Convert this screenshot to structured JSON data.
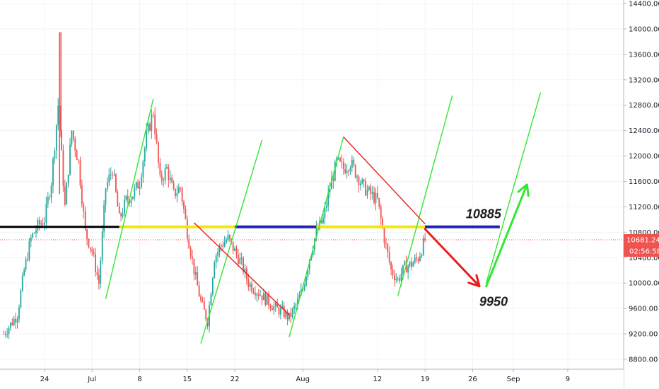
{
  "chart_data": {
    "type": "candlestick",
    "title": "",
    "y_axis": {
      "position": "right",
      "ticks": [
        "14400.00",
        "14000.00",
        "13600.00",
        "13200.00",
        "12800.00",
        "12400.00",
        "12000.00",
        "11600.00",
        "11200.00",
        "10800.00",
        "10400.00",
        "10000.00",
        "9600.00",
        "9200.00",
        "8800.00"
      ],
      "range": [
        8650,
        14500
      ]
    },
    "x_axis": {
      "ticks": [
        {
          "label": "24",
          "date": "2019-06-24"
        },
        {
          "label": "Jul",
          "date": "2019-07-01"
        },
        {
          "label": "8",
          "date": "2019-07-08"
        },
        {
          "label": "15",
          "date": "2019-07-15"
        },
        {
          "label": "22",
          "date": "2019-07-22"
        },
        {
          "label": "Aug",
          "date": "2019-08-01"
        },
        {
          "label": "12",
          "date": "2019-08-12"
        },
        {
          "label": "19",
          "date": "2019-08-19"
        },
        {
          "label": "26",
          "date": "2019-08-26"
        },
        {
          "label": "Sep",
          "date": "2019-09-01"
        },
        {
          "label": "9",
          "date": "2019-09-09"
        }
      ]
    },
    "up_color": "#26a69a",
    "down_color": "#ef5350",
    "price_anchors": [
      [
        "2019-06-18",
        9200
      ],
      [
        "2019-06-20",
        9500
      ],
      [
        "2019-06-21",
        10200
      ],
      [
        "2019-06-22",
        10700
      ],
      [
        "2019-06-23",
        10900
      ],
      [
        "2019-06-24",
        11000
      ],
      [
        "2019-06-25",
        11600
      ],
      [
        "2019-06-26",
        12800
      ],
      [
        "2019-06-27",
        11200
      ],
      [
        "2019-06-28",
        12400
      ],
      [
        "2019-06-29",
        11900
      ],
      [
        "2019-06-30",
        10800
      ],
      [
        "2019-07-01",
        10500
      ],
      [
        "2019-07-02",
        10000
      ],
      [
        "2019-07-03",
        11500
      ],
      [
        "2019-07-04",
        11800
      ],
      [
        "2019-07-05",
        11000
      ],
      [
        "2019-07-06",
        11300
      ],
      [
        "2019-07-07",
        11400
      ],
      [
        "2019-07-08",
        11600
      ],
      [
        "2019-07-09",
        12300
      ],
      [
        "2019-07-10",
        12700
      ],
      [
        "2019-07-11",
        11600
      ],
      [
        "2019-07-12",
        11800
      ],
      [
        "2019-07-13",
        11400
      ],
      [
        "2019-07-14",
        11500
      ],
      [
        "2019-07-15",
        10800
      ],
      [
        "2019-07-16",
        10200
      ],
      [
        "2019-07-17",
        9700
      ],
      [
        "2019-07-18",
        9400
      ],
      [
        "2019-07-19",
        10400
      ],
      [
        "2019-07-20",
        10600
      ],
      [
        "2019-07-21",
        10700
      ],
      [
        "2019-07-22",
        10500
      ],
      [
        "2019-07-23",
        10300
      ],
      [
        "2019-07-24",
        10000
      ],
      [
        "2019-07-25",
        9900
      ],
      [
        "2019-07-26",
        9800
      ],
      [
        "2019-07-27",
        9700
      ],
      [
        "2019-07-28",
        9600
      ],
      [
        "2019-07-29",
        9550
      ],
      [
        "2019-07-30",
        9450
      ],
      [
        "2019-07-31",
        9650
      ],
      [
        "2019-08-01",
        9900
      ],
      [
        "2019-08-02",
        10400
      ],
      [
        "2019-08-03",
        10800
      ],
      [
        "2019-08-04",
        11000
      ],
      [
        "2019-08-05",
        11500
      ],
      [
        "2019-08-06",
        11900
      ],
      [
        "2019-08-07",
        11800
      ],
      [
        "2019-08-08",
        11900
      ],
      [
        "2019-08-09",
        11700
      ],
      [
        "2019-08-10",
        11500
      ],
      [
        "2019-08-11",
        11400
      ],
      [
        "2019-08-12",
        11300
      ],
      [
        "2019-08-13",
        10700
      ],
      [
        "2019-08-14",
        10200
      ],
      [
        "2019-08-15",
        10050
      ],
      [
        "2019-08-16",
        10250
      ],
      [
        "2019-08-17",
        10300
      ],
      [
        "2019-08-18",
        10400
      ],
      [
        "2019-08-19",
        10681
      ]
    ],
    "horizontal_lines": [
      {
        "price": 10885,
        "from": "2019-06-14",
        "to": "2019-08-25",
        "color": "#000000"
      },
      {
        "price": 10885,
        "from": "2019-07-05",
        "to": "2019-07-22",
        "color": "#f5e60a"
      },
      {
        "price": 10885,
        "from": "2019-07-22",
        "to": "2019-08-03",
        "color": "#1f22b8"
      },
      {
        "price": 10885,
        "from": "2019-08-03",
        "to": "2019-08-19",
        "color": "#f5e60a"
      },
      {
        "price": 10885,
        "from": "2019-08-19",
        "to": "2019-08-30",
        "color": "#1f22b8"
      }
    ],
    "trend_lines": [
      {
        "color": "#33e633",
        "from": [
          "2019-07-03",
          9750
        ],
        "to": [
          "2019-07-10",
          12900
        ]
      },
      {
        "color": "#33e633",
        "from": [
          "2019-07-17",
          9050
        ],
        "to": [
          "2019-07-26",
          12250
        ]
      },
      {
        "color": "#33e633",
        "from": [
          "2019-07-30",
          9150
        ],
        "to": [
          "2019-08-07",
          12300
        ]
      },
      {
        "color": "#33e633",
        "from": [
          "2019-08-15",
          9800
        ],
        "to": [
          "2019-08-23",
          12950
        ]
      },
      {
        "color": "#33e633",
        "from": [
          "2019-08-28",
          10000
        ],
        "to": [
          "2019-09-05",
          13000
        ]
      },
      {
        "color": "#e81c1c",
        "from": [
          "2019-07-16",
          10950
        ],
        "to": [
          "2019-07-30",
          9500
        ]
      },
      {
        "color": "#e81c1c",
        "from": [
          "2019-08-07",
          12300
        ],
        "to": [
          "2019-08-19",
          10930
        ]
      }
    ],
    "arrows": [
      {
        "color": "#e81c1c",
        "from": [
          "2019-08-19",
          10850
        ],
        "to": [
          "2019-08-27",
          9950
        ]
      },
      {
        "color": "#33e633",
        "from": [
          "2019-08-28",
          9950
        ],
        "to": [
          "2019-09-03",
          11550
        ]
      }
    ],
    "annotations": [
      {
        "text": "10885",
        "at": [
          "2019-08-25",
          11020
        ]
      },
      {
        "text": "9950",
        "at": [
          "2019-08-27",
          9640
        ]
      }
    ],
    "last_price": {
      "value": "10681.24",
      "countdown": "02:56:58",
      "color": "#ef5350"
    }
  }
}
